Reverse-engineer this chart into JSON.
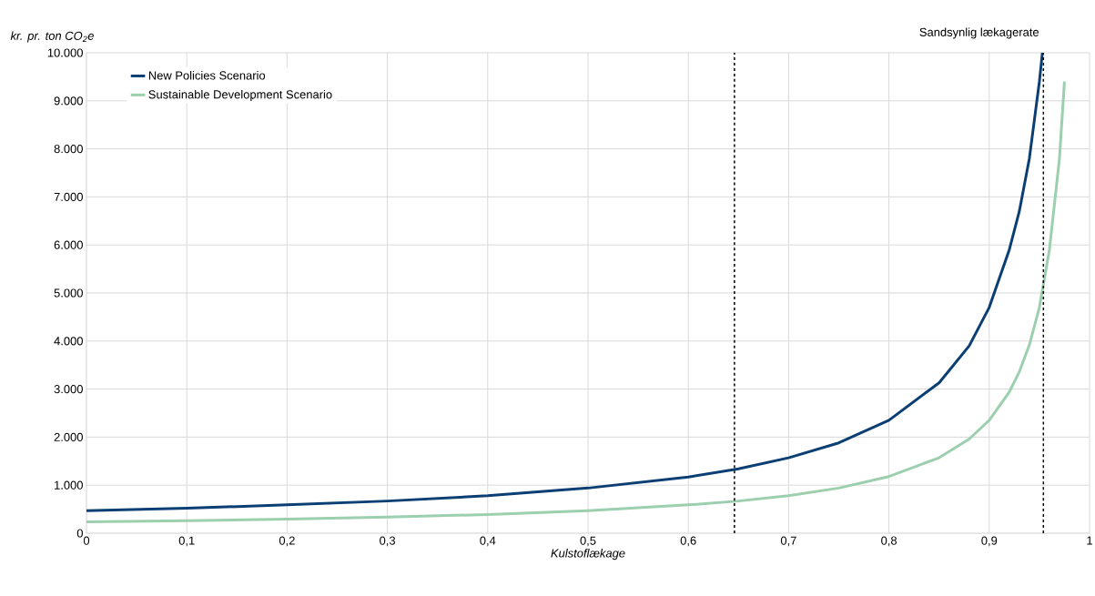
{
  "chart_data": {
    "type": "line",
    "xlabel": "Kulstoflækage",
    "ylabel": "kr. pr. ton CO$_{2}$e",
    "annotations": [
      "Sandsynlig lækagerate"
    ],
    "xlim": [
      0,
      1
    ],
    "ylim": [
      0,
      10000
    ],
    "xticks": [
      0,
      {
        "value": 0.1,
        "label": "0,1"
      },
      {
        "value": 0.2,
        "label": "0,2"
      },
      {
        "value": 0.3,
        "label": "0,3"
      },
      {
        "value": 0.4,
        "label": "0,4"
      },
      {
        "value": 0.5,
        "label": "0,5"
      },
      {
        "value": 0.6,
        "label": "0,6"
      },
      {
        "value": 0.7,
        "label": "0,7"
      },
      {
        "value": 0.8,
        "label": "0,8"
      },
      {
        "value": 0.9,
        "label": "0,9"
      },
      1
    ],
    "yticks": [
      0,
      {
        "value": 1000,
        "label": "1.000"
      },
      {
        "value": 2000,
        "label": "2.000"
      },
      {
        "value": 3000,
        "label": "3.000"
      },
      {
        "value": 4000,
        "label": "4.000"
      },
      {
        "value": 5000,
        "label": "5.000"
      },
      {
        "value": 6000,
        "label": "6.000"
      },
      {
        "value": 7000,
        "label": "7.000"
      },
      {
        "value": 8000,
        "label": "8.000"
      },
      {
        "value": 9000,
        "label": "9.000"
      },
      {
        "value": 10000,
        "label": "10.000"
      }
    ],
    "grid": true,
    "legend": "top left",
    "line_style": "solid",
    "ref_lines": [
      {
        "axis": "x",
        "value": 0.646,
        "color": "#000000",
        "line_style": "dashed"
      },
      {
        "axis": "x",
        "value": 0.954,
        "color": "#000000",
        "line_style": "dashed"
      }
    ],
    "series": [
      {
        "name": "New Policies Scenario",
        "color": "#0b3f73",
        "x": [
          0,
          0.1,
          0.2,
          0.3,
          0.4,
          0.5,
          0.6,
          0.65,
          0.7,
          0.75,
          0.8,
          0.85,
          0.88,
          0.9,
          0.92,
          0.93,
          0.94,
          0.95,
          0.953
        ],
        "values": [
          470,
          520,
          590,
          670,
          780,
          940,
          1170,
          1340,
          1570,
          1880,
          2350,
          3130,
          3900,
          4700,
          5900,
          6700,
          7800,
          9400,
          10000
        ]
      },
      {
        "name": "Sustainable Development Scenario",
        "color": "#9ccfad",
        "x": [
          0,
          0.1,
          0.2,
          0.3,
          0.4,
          0.5,
          0.6,
          0.65,
          0.7,
          0.75,
          0.8,
          0.85,
          0.88,
          0.9,
          0.92,
          0.93,
          0.94,
          0.95,
          0.96,
          0.97,
          0.975
        ],
        "values": [
          235,
          260,
          295,
          335,
          390,
          470,
          590,
          670,
          780,
          940,
          1180,
          1570,
          1960,
          2350,
          2940,
          3360,
          3920,
          4700,
          5900,
          7800,
          9400
        ]
      }
    ]
  }
}
